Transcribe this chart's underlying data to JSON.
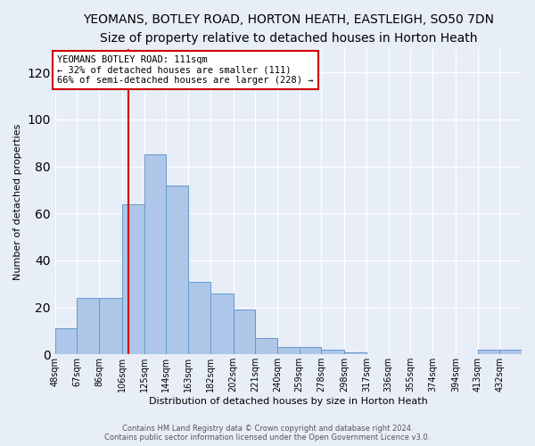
{
  "title": "YEOMANS, BOTLEY ROAD, HORTON HEATH, EASTLEIGH, SO50 7DN",
  "subtitle": "Size of property relative to detached houses in Horton Heath",
  "xlabel": "Distribution of detached houses by size in Horton Heath",
  "ylabel": "Number of detached properties",
  "bar_color": "#aec6e8",
  "bar_edge_color": "#6699cc",
  "background_color": "#e8eef8",
  "vline_x": 111,
  "vline_color": "#cc0000",
  "bin_edges": [
    48,
    67,
    86,
    106,
    125,
    144,
    163,
    182,
    202,
    221,
    240,
    259,
    278,
    298,
    317,
    336,
    355,
    374,
    394,
    413,
    432,
    451
  ],
  "bin_labels": [
    "48sqm",
    "67sqm",
    "86sqm",
    "106sqm",
    "125sqm",
    "144sqm",
    "163sqm",
    "182sqm",
    "202sqm",
    "221sqm",
    "240sqm",
    "259sqm",
    "278sqm",
    "298sqm",
    "317sqm",
    "336sqm",
    "355sqm",
    "374sqm",
    "394sqm",
    "413sqm",
    "432sqm"
  ],
  "counts": [
    11,
    24,
    24,
    64,
    85,
    72,
    31,
    26,
    19,
    7,
    3,
    3,
    2,
    1,
    0,
    0,
    0,
    0,
    0,
    2,
    2
  ],
  "ylim": [
    0,
    130
  ],
  "yticks": [
    0,
    20,
    40,
    60,
    80,
    100,
    120
  ],
  "annotation_text": "YEOMANS BOTLEY ROAD: 111sqm\n← 32% of detached houses are smaller (111)\n66% of semi-detached houses are larger (228) →",
  "annotation_box_color": "white",
  "annotation_box_edge_color": "#cc0000",
  "footer_text": "Contains HM Land Registry data © Crown copyright and database right 2024.\nContains public sector information licensed under the Open Government Licence v3.0.",
  "title_fontsize": 10,
  "subtitle_fontsize": 9
}
